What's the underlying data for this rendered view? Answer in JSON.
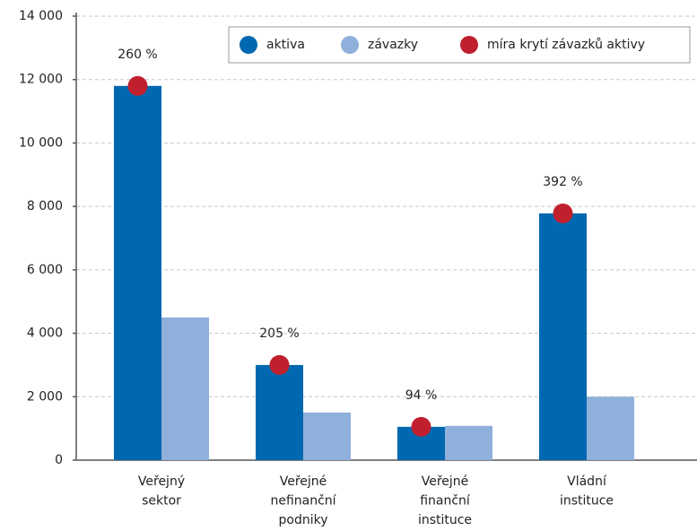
{
  "chart_data": {
    "type": "bar",
    "categories": [
      [
        "Veřejný",
        "sektor"
      ],
      [
        "Veřejné",
        "nefinanční",
        "podniky"
      ],
      [
        "Veřejné",
        "finanční",
        "instituce"
      ],
      [
        "Vládní",
        "instituce"
      ]
    ],
    "series": [
      {
        "name": "aktiva",
        "color": "#0068b0",
        "values": [
          11800,
          3000,
          1050,
          7780
        ]
      },
      {
        "name": "závazky",
        "color": "#8eb0da",
        "values": [
          4500,
          1500,
          1080,
          2000
        ]
      },
      {
        "name": "míra krytí závazků aktivy",
        "color": "#c0202e",
        "type": "scatter",
        "values": [
          260,
          205,
          94,
          392
        ],
        "value_labels": [
          "260 %",
          "205 %",
          "94 %",
          "392 %"
        ]
      }
    ],
    "ylim": [
      0,
      14000
    ],
    "yticks": [
      0,
      {
        "value": 2000,
        "label": "2 000"
      },
      {
        "value": 4000,
        "label": "4 000"
      },
      {
        "value": 6000,
        "label": "6 000"
      },
      {
        "value": 8000,
        "label": "8 000"
      },
      {
        "value": 10000,
        "label": "10 000"
      },
      {
        "value": 12000,
        "label": "12 000"
      },
      {
        "value": 14000,
        "label": "14 000"
      }
    ],
    "grid": true,
    "legend": "top-right"
  }
}
